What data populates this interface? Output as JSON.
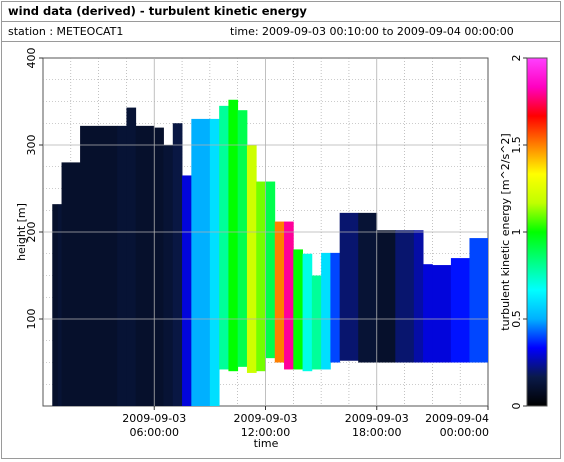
{
  "header": {
    "title": "wind data (derived) - turbulent kinetic energy",
    "station": "station : METEOCAT1",
    "time_range": "time: 2009-09-03 00:10:00 to 2009-09-04 00:00:00"
  },
  "chart_data": {
    "type": "heatmap",
    "xlabel": "time",
    "ylabel": "height [m]",
    "colorbar_label": "turbulent kinetic energy [m^2/s^2]",
    "x_range": [
      "2009-09-03 00:00:00",
      "2009-09-04 00:00:00"
    ],
    "ylim": [
      0,
      400
    ],
    "clim": [
      0,
      2
    ],
    "x_ticks": [
      {
        "value": "2009-09-03 06:00:00",
        "line1": "2009-09-03",
        "line2": "06:00:00"
      },
      {
        "value": "2009-09-03 12:00:00",
        "line1": "2009-09-03",
        "line2": "12:00:00"
      },
      {
        "value": "2009-09-03 18:00:00",
        "line1": "2009-09-03",
        "line2": "18:00:00"
      },
      {
        "value": "2009-09-04 00:00:00",
        "line1": "2009-09-04",
        "line2": "00:00:00"
      }
    ],
    "y_ticks": [
      100,
      200,
      300,
      400
    ],
    "colorbar_ticks": [
      "0",
      "0.5",
      "1",
      "1.5",
      "2"
    ],
    "colormap": [
      "#000000",
      "#0a1a4a",
      "#0000ff",
      "#00b0ff",
      "#00ffff",
      "#00ff80",
      "#00ff00",
      "#c0ff00",
      "#ffff00",
      "#ff8000",
      "#ff0000",
      "#ff00c0",
      "#ff40ff"
    ],
    "grid": true,
    "time_hours": [
      0.0,
      0.5,
      0.8,
      1.0,
      2.0,
      3.0,
      4.0,
      4.5,
      5.0,
      6.0,
      6.5,
      7.0,
      7.5,
      8.0,
      9.0,
      9.5,
      10.0,
      10.5,
      11.0,
      11.5,
      12.0,
      12.5,
      13.0,
      13.5,
      14.0,
      14.5,
      15.0,
      15.5,
      16.0,
      17.0,
      18.0,
      19.0,
      20.0,
      20.5,
      21.0,
      22.0,
      23.0,
      24.0
    ],
    "top_height_m": [
      0,
      232,
      232,
      280,
      322,
      322,
      322,
      343,
      322,
      320,
      300,
      325,
      265,
      330,
      330,
      345,
      352,
      340,
      300,
      258,
      258,
      212,
      212,
      180,
      175,
      150,
      176,
      176,
      222,
      222,
      202,
      202,
      202,
      163,
      162,
      170,
      193,
      193
    ],
    "bottom_height_m": [
      0,
      0,
      0,
      0,
      0,
      0,
      0,
      0,
      0,
      0,
      0,
      0,
      0,
      0,
      0,
      42,
      40,
      45,
      38,
      40,
      55,
      50,
      42,
      42,
      40,
      42,
      42,
      50,
      52,
      50,
      50,
      50,
      50,
      50,
      50,
      50,
      50,
      50
    ],
    "tke_m2_s2": [
      0.05,
      0.1,
      0.12,
      0.1,
      0.1,
      0.1,
      0.12,
      0.12,
      0.1,
      0.1,
      0.12,
      0.15,
      0.3,
      0.5,
      0.6,
      0.8,
      1.0,
      0.9,
      1.2,
      1.1,
      0.9,
      1.5,
      1.8,
      1.0,
      0.7,
      0.8,
      0.6,
      0.4,
      0.2,
      0.12,
      0.1,
      0.2,
      0.25,
      0.3,
      0.3,
      0.35,
      0.4,
      0.4
    ]
  }
}
